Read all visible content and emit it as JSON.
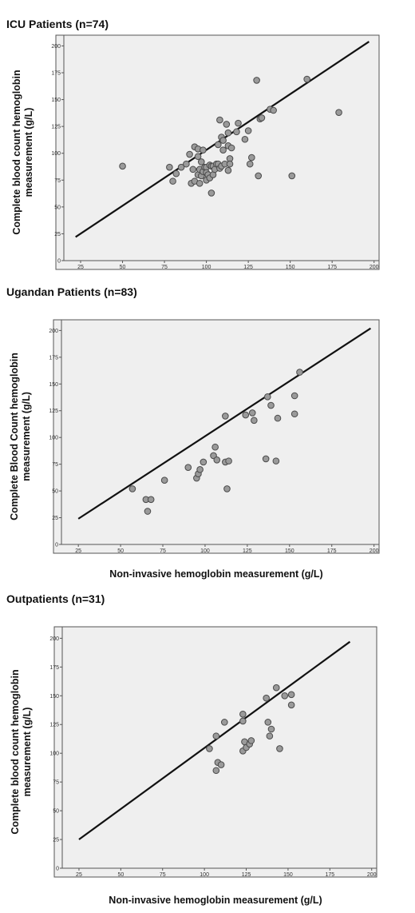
{
  "figure": {
    "panels": [
      {
        "title": "ICU Patients (n=74)",
        "ylabel_line1": "Complete blood count hemoglobin",
        "ylabel_line2": "measurement (g/L)",
        "xlabel": ""
      },
      {
        "title": "Ugandan Patients (n=83)",
        "ylabel_line1": "Complete Blood Count hemoglobin",
        "ylabel_line2": "measurement (g/L)",
        "xlabel": "Non-invasive hemoglobin measurement (g/L)"
      },
      {
        "title": "Outpatients (n=31)",
        "ylabel_line1": "Complete blood count hemoglobin",
        "ylabel_line2": "measurement (g/L)",
        "xlabel": "Non-invasive hemoglobin measurement (g/L)"
      }
    ]
  },
  "chart_data": [
    {
      "type": "scatter",
      "title": "ICU Patients (n=74)",
      "xlabel": "",
      "ylabel": "Complete blood count hemoglobin measurement (g/L)",
      "xlim": [
        15,
        203
      ],
      "ylim": [
        0,
        210
      ],
      "xticks": [
        25,
        50,
        75,
        100,
        125,
        150,
        175,
        200
      ],
      "yticks": [
        0,
        25,
        50,
        75,
        100,
        125,
        150,
        175,
        200
      ],
      "grid": false,
      "fit_line": {
        "x": [
          22,
          197
        ],
        "y": [
          22,
          204
        ]
      },
      "points": {
        "x": [
          50,
          78,
          80,
          82,
          85,
          88,
          90,
          91,
          92,
          93,
          93,
          95,
          95,
          95,
          96,
          96,
          97,
          97,
          98,
          98,
          99,
          100,
          100,
          100,
          101,
          102,
          102,
          103,
          103,
          104,
          104,
          105,
          106,
          107,
          107,
          108,
          108,
          109,
          109,
          110,
          110,
          111,
          112,
          113,
          113,
          113,
          114,
          114,
          115,
          118,
          119,
          123,
          125,
          126,
          127,
          130,
          131,
          132,
          133,
          138,
          140,
          151,
          160,
          179
        ],
        "y": [
          88,
          87,
          74,
          81,
          87,
          90,
          99,
          72,
          85,
          74,
          106,
          80,
          104,
          97,
          85,
          72,
          92,
          79,
          83,
          103,
          87,
          87,
          82,
          75,
          80,
          89,
          77,
          88,
          63,
          80,
          88,
          85,
          90,
          108,
          90,
          86,
          131,
          88,
          115,
          103,
          112,
          90,
          127,
          84,
          107,
          119,
          95,
          90,
          105,
          120,
          128,
          113,
          121,
          90,
          96,
          168,
          79,
          132,
          133,
          141,
          140,
          79,
          169,
          138
        ]
      }
    },
    {
      "type": "scatter",
      "title": "Ugandan Patients (n=83)",
      "xlabel": "Non-invasive hemoglobin measurement (g/L)",
      "ylabel": "Complete Blood Count hemoglobin measurement (g/L)",
      "xlim": [
        15,
        203
      ],
      "ylim": [
        0,
        210
      ],
      "xticks": [
        25,
        50,
        75,
        100,
        125,
        150,
        175,
        200
      ],
      "yticks": [
        0,
        25,
        50,
        75,
        100,
        125,
        150,
        175,
        200
      ],
      "grid": false,
      "fit_line": {
        "x": [
          25,
          198
        ],
        "y": [
          24,
          202
        ]
      },
      "points": {
        "x": [
          57,
          65,
          66,
          68,
          76,
          90,
          95,
          96,
          97,
          99,
          105,
          106,
          107,
          112,
          112,
          113,
          114,
          124,
          128,
          129,
          136,
          137,
          139,
          142,
          143,
          153,
          153,
          156
        ],
        "y": [
          52,
          42,
          31,
          42,
          60,
          72,
          62,
          66,
          70,
          77,
          83,
          91,
          79,
          120,
          77,
          52,
          78,
          121,
          123,
          116,
          80,
          138,
          130,
          78,
          118,
          139,
          122,
          161
        ]
      }
    },
    {
      "type": "scatter",
      "title": "Outpatients (n=31)",
      "xlabel": "Non-invasive hemoglobin measurement (g/L)",
      "ylabel": "Complete blood count hemoglobin measurement (g/L)",
      "xlim": [
        15,
        203
      ],
      "ylim": [
        0,
        210
      ],
      "xticks": [
        25,
        50,
        75,
        100,
        125,
        150,
        175,
        200
      ],
      "yticks": [
        0,
        25,
        50,
        75,
        100,
        125,
        150,
        175,
        200
      ],
      "grid": false,
      "fit_line": {
        "x": [
          25,
          187
        ],
        "y": [
          25,
          197
        ]
      },
      "points": {
        "x": [
          103,
          107,
          107,
          108,
          110,
          112,
          123,
          123,
          123,
          124,
          125,
          127,
          128,
          137,
          138,
          139,
          140,
          143,
          145,
          148,
          152,
          152
        ],
        "y": [
          104,
          115,
          85,
          92,
          90,
          127,
          134,
          128,
          102,
          110,
          105,
          108,
          111,
          148,
          127,
          115,
          121,
          157,
          104,
          150,
          142,
          151
        ]
      }
    }
  ]
}
